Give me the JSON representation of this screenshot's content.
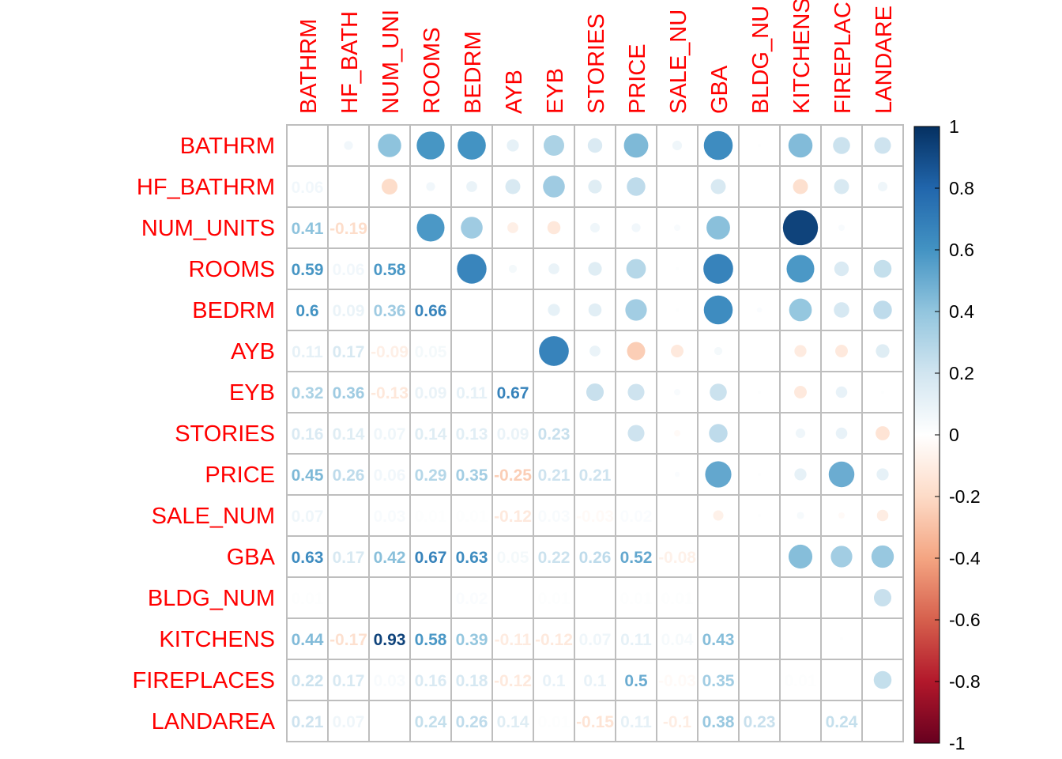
{
  "chart_data": {
    "type": "heatmap",
    "title": "",
    "variables": [
      "BATHRM",
      "HF_BATHRM",
      "NUM_UNITS",
      "ROOMS",
      "BEDRM",
      "AYB",
      "EYB",
      "STORIES",
      "PRICE",
      "SALE_NUM",
      "GBA",
      "BLDG_NUM",
      "KITCHENS",
      "FIREPLACES",
      "LANDAREA"
    ],
    "column_labels": [
      "BATHRM",
      "HF_BATH",
      "NUM_UNI",
      "ROOMS",
      "BEDRM",
      "AYB",
      "EYB",
      "STORIES",
      "PRICE",
      "SALE_NU",
      "GBA",
      "BLDG_NU",
      "KITCHENS",
      "FIREPLAC",
      "LANDARE"
    ],
    "matrix": [
      [
        1,
        0.06,
        0.41,
        0.59,
        0.6,
        0.11,
        0.32,
        0.16,
        0.45,
        0.07,
        0.63,
        0.01,
        0.44,
        0.22,
        0.21
      ],
      [
        0.06,
        1,
        -0.19,
        0.06,
        0.09,
        0.17,
        0.36,
        0.14,
        0.26,
        0.0,
        0.17,
        0.0,
        -0.17,
        0.17,
        0.07
      ],
      [
        0.41,
        -0.19,
        1,
        0.58,
        0.36,
        -0.09,
        -0.13,
        0.07,
        0.06,
        0.03,
        0.42,
        0.0,
        0.93,
        0.03,
        0.0
      ],
      [
        0.59,
        0.06,
        0.58,
        1,
        0.66,
        0.05,
        0.09,
        0.14,
        0.29,
        0.01,
        0.67,
        0.0,
        0.58,
        0.16,
        0.24
      ],
      [
        0.6,
        0.09,
        0.36,
        0.66,
        1,
        0.0,
        0.11,
        0.13,
        0.35,
        0.01,
        0.63,
        0.02,
        0.39,
        0.18,
        0.26
      ],
      [
        0.11,
        0.17,
        -0.09,
        0.05,
        0.0,
        1,
        0.67,
        0.09,
        -0.25,
        -0.12,
        0.05,
        0.0,
        -0.11,
        -0.12,
        0.14
      ],
      [
        0.32,
        0.36,
        -0.13,
        0.09,
        0.11,
        0.67,
        1,
        0.23,
        0.21,
        0.03,
        0.22,
        0.01,
        -0.12,
        0.1,
        0.01
      ],
      [
        0.16,
        0.14,
        0.07,
        0.14,
        0.13,
        0.09,
        0.23,
        1,
        0.21,
        -0.03,
        0.26,
        0.0,
        0.07,
        0.1,
        -0.15
      ],
      [
        0.45,
        0.26,
        0.06,
        0.29,
        0.35,
        -0.25,
        0.21,
        0.21,
        1,
        0.02,
        0.52,
        0.01,
        0.11,
        0.5,
        0.11
      ],
      [
        0.07,
        0.0,
        0.03,
        0.01,
        0.01,
        -0.12,
        0.03,
        -0.03,
        0.02,
        1,
        -0.08,
        0.01,
        0.04,
        -0.03,
        -0.1
      ],
      [
        0.63,
        0.17,
        0.42,
        0.67,
        0.63,
        0.05,
        0.22,
        0.26,
        0.52,
        -0.08,
        1,
        0.0,
        0.43,
        0.35,
        0.38
      ],
      [
        0.01,
        0.0,
        0.0,
        0.0,
        0.02,
        0.0,
        0.01,
        0.0,
        0.01,
        0.01,
        0.0,
        1,
        0.0,
        0.0,
        0.23
      ],
      [
        0.44,
        -0.17,
        0.93,
        0.58,
        0.39,
        -0.11,
        -0.12,
        0.07,
        0.11,
        0.04,
        0.43,
        0.0,
        1,
        0.01,
        0.0
      ],
      [
        0.22,
        0.17,
        0.03,
        0.16,
        0.18,
        -0.12,
        0.1,
        0.1,
        0.5,
        -0.03,
        0.35,
        0.0,
        0.01,
        1,
        0.24
      ],
      [
        0.21,
        0.07,
        0.0,
        0.24,
        0.26,
        0.14,
        0.01,
        -0.15,
        0.11,
        -0.1,
        0.38,
        0.23,
        0.0,
        0.24,
        1
      ]
    ],
    "upper": "circle",
    "lower": "number",
    "diagonal": "blank",
    "value_range": [
      -1,
      1
    ],
    "colorbar_ticks": [
      "1",
      "0.8",
      "0.6",
      "0.4",
      "0.2",
      "0",
      "-0.2",
      "-0.4",
      "-0.6",
      "-0.8",
      "-1"
    ],
    "legend_position": "right",
    "label_color": "#ff0000",
    "grid_color": "#bebebe",
    "palette": [
      "#67001f",
      "#b2182b",
      "#d6604d",
      "#f4a582",
      "#fddbc7",
      "#ffffff",
      "#d1e5f0",
      "#92c5de",
      "#4393c3",
      "#2166ac",
      "#053061"
    ]
  }
}
